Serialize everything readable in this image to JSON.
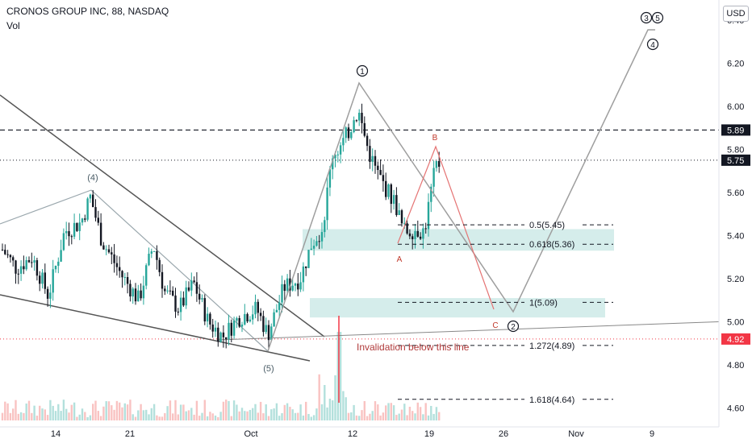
{
  "header": {
    "symbol_line": "CRONOS GROUP INC, 88, NASDAQ",
    "volume_label": "Vol"
  },
  "currency": "USD",
  "chart_data": {
    "type": "candlestick",
    "y_axis": {
      "ticks": [
        "6.40",
        "6.20",
        "6.00",
        "5.80",
        "5.60",
        "5.40",
        "5.20",
        "5.00",
        "4.80",
        "4.60"
      ],
      "ylim": [
        4.56,
        6.47
      ]
    },
    "x_axis": {
      "ticks": [
        "14",
        "21",
        "Oct",
        "12",
        "19",
        "26",
        "Nov",
        "9"
      ]
    },
    "price_labels": [
      {
        "value": "5.89",
        "style": "dashed",
        "color": "#131722"
      },
      {
        "value": "5.75",
        "style": "dotted",
        "color": "#131722"
      },
      {
        "value": "4.92",
        "style": "dotted",
        "color": "#f23645"
      }
    ],
    "wave_labels": [
      "(4)",
      "(5)",
      "1",
      "2",
      "3",
      "4",
      "5",
      "A",
      "B",
      "C"
    ],
    "fib_levels": [
      {
        "label": "0.5(5.45)",
        "value": 5.45
      },
      {
        "label": "0.618(5.36)",
        "value": 5.36
      },
      {
        "label": "1(5.09)",
        "value": 5.09
      },
      {
        "label": "1.272(4.89)",
        "value": 4.89
      },
      {
        "label": "1.618(4.64)",
        "value": 4.64
      }
    ],
    "zones": [
      {
        "from": 5.33,
        "to": 5.43
      },
      {
        "from": 5.02,
        "to": 5.11
      }
    ],
    "annotation": "Invalidation below this line",
    "colors": {
      "up": "#26a69a",
      "down": "#131722",
      "invalidation": "#f23645",
      "abc": "#e57373",
      "zone": "#b2dfdb"
    }
  }
}
